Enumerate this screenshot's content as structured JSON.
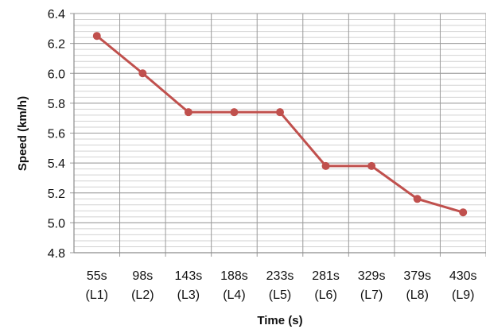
{
  "chart_data": {
    "type": "line",
    "title": "",
    "xlabel": "Time (s)",
    "ylabel": "Speed (km/h)",
    "categories": [
      [
        "55s",
        "(L1)"
      ],
      [
        "98s",
        "(L2)"
      ],
      [
        "143s",
        "(L3)"
      ],
      [
        "188s",
        "(L4)"
      ],
      [
        "233s",
        "(L5)"
      ],
      [
        "281s",
        "(L6)"
      ],
      [
        "329s",
        "(L7)"
      ],
      [
        "379s",
        "(L8)"
      ],
      [
        "430s",
        "(L9)"
      ]
    ],
    "series": [
      {
        "values": [
          6.25,
          6.0,
          5.74,
          5.74,
          5.74,
          5.38,
          5.38,
          5.16,
          5.07
        ],
        "color": "#C0504D"
      }
    ],
    "ylim": [
      4.8,
      6.4
    ],
    "yticks": [
      "4.8",
      "5.0",
      "5.2",
      "5.4",
      "5.6",
      "5.8",
      "6.0",
      "6.2",
      "6.4"
    ],
    "y_major_step": 0.2,
    "y_minor_step": 0.04,
    "grid": true,
    "legend": "none",
    "colors": {
      "major_grid": "#9a9a9a",
      "minor_grid": "#d2d2d2",
      "axis": "#8c8c8c"
    }
  }
}
